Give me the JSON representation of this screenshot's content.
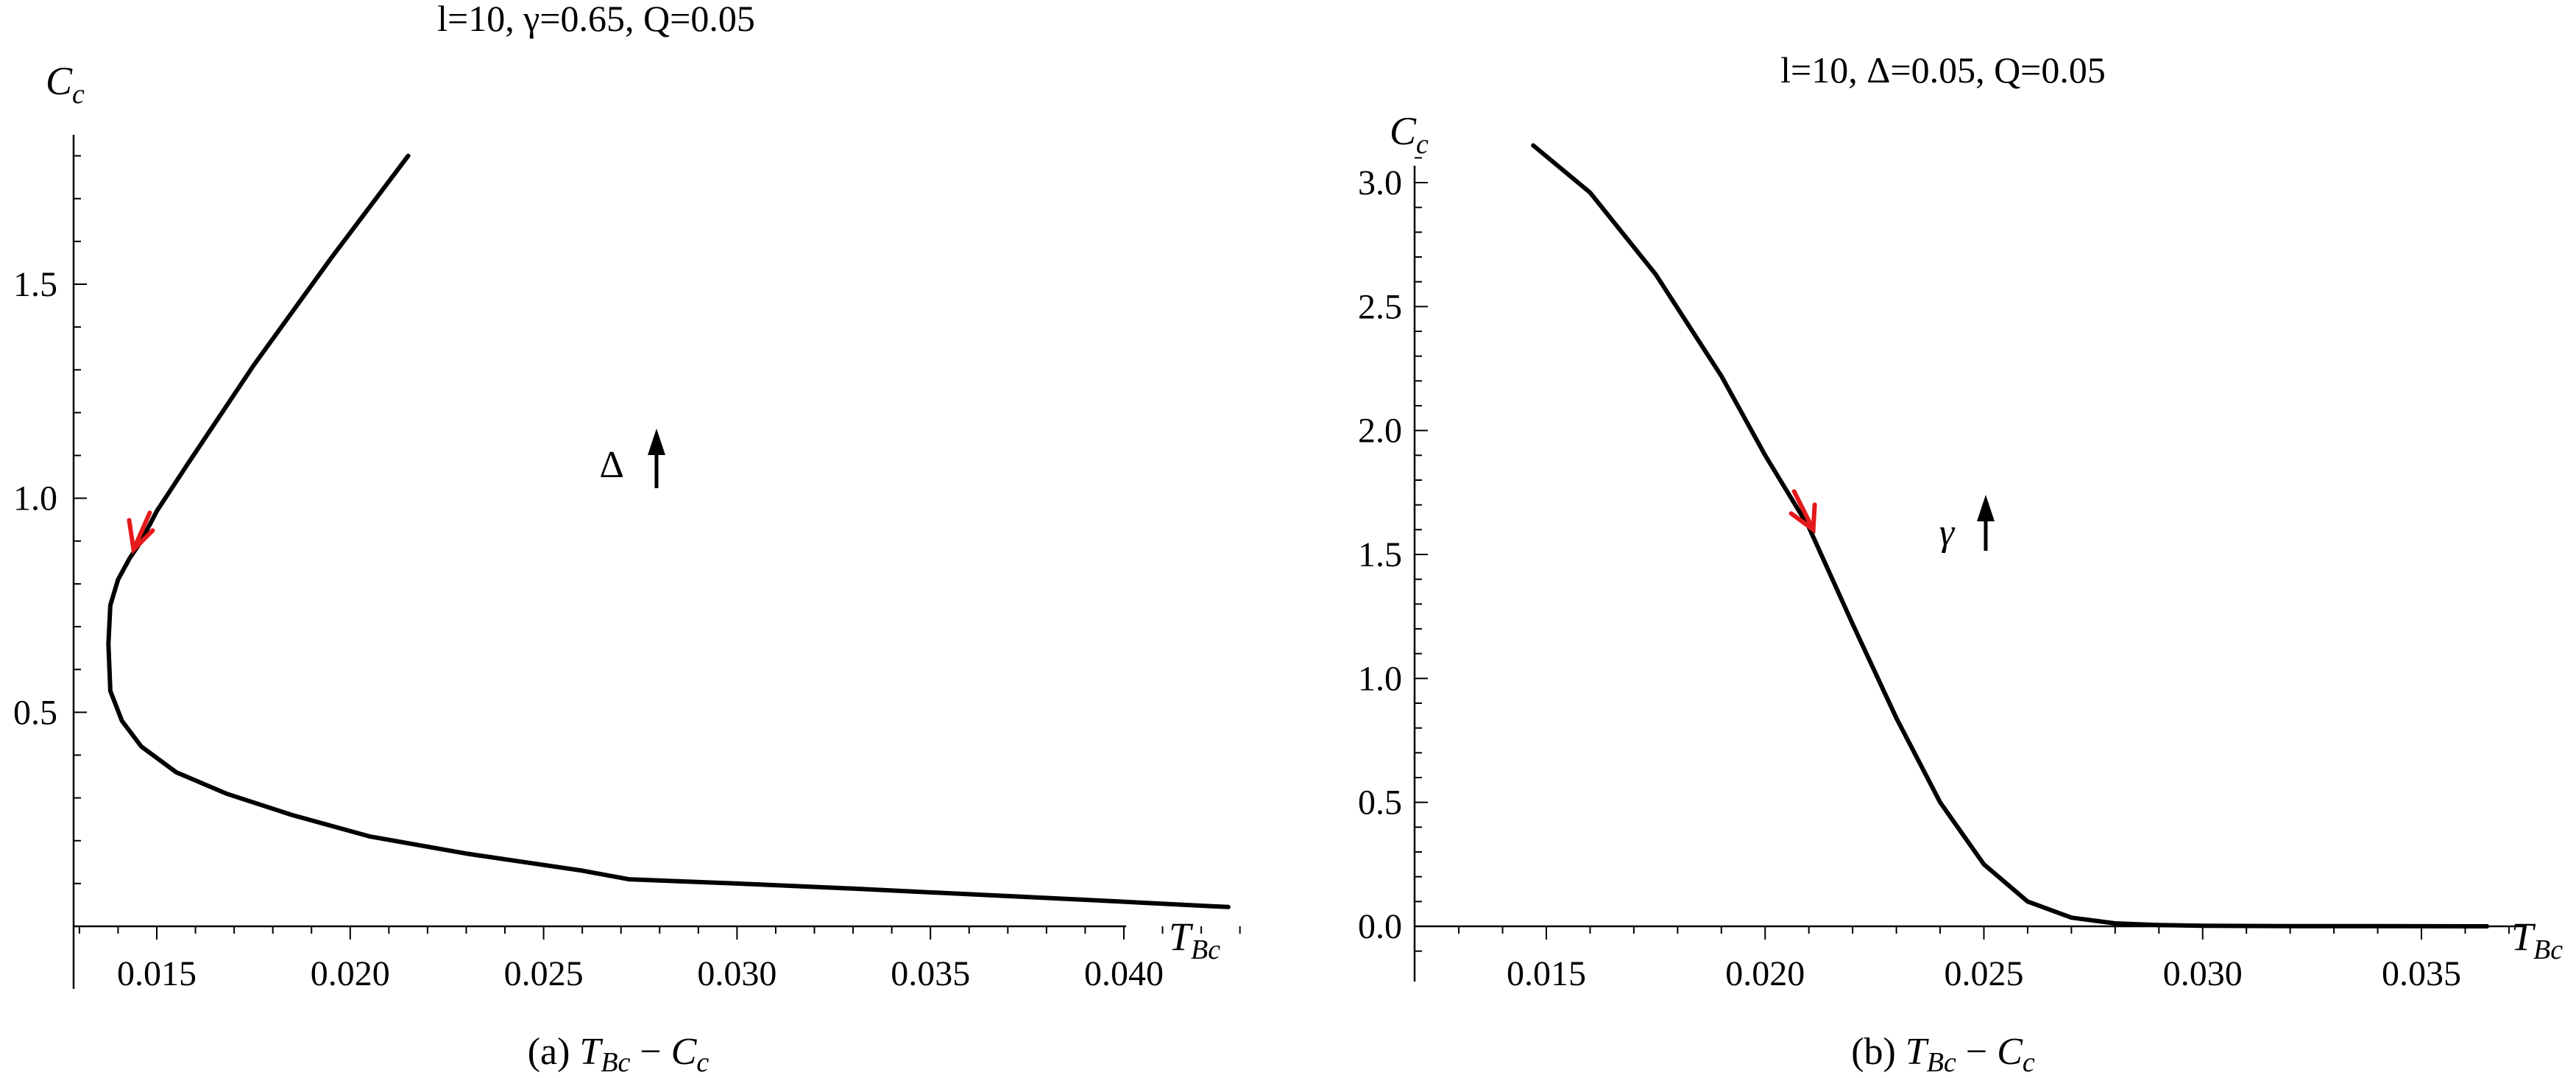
{
  "chart_data": [
    {
      "type": "line",
      "title": "l=10, γ=0.65, Q=0.05",
      "xlabel": "T_Bc",
      "ylabel": "C_c",
      "caption": "(a) T_Bc − C_c",
      "xlim": [
        0.012,
        0.0435
      ],
      "ylim": [
        0,
        1.85
      ],
      "xticks": [
        "0.015",
        "0.020",
        "0.025",
        "0.030",
        "0.035",
        "0.040"
      ],
      "yticks": [
        "0.5",
        "1.0",
        "1.5"
      ],
      "annotation": "Δ",
      "series": [
        {
          "x": [
            0.0215,
            0.0195,
            0.0175,
            0.0158,
            0.015,
            0.0146,
            0.0143,
            0.014,
            0.0138,
            0.01375,
            0.0138,
            0.0141,
            0.0146,
            0.0155,
            0.0168,
            0.0185,
            0.0205,
            0.023,
            0.026,
            0.0272,
            0.03,
            0.033,
            0.036,
            0.039,
            0.0427
          ],
          "y": [
            1.8,
            1.56,
            1.31,
            1.08,
            0.97,
            0.9,
            0.86,
            0.81,
            0.75,
            0.66,
            0.55,
            0.48,
            0.42,
            0.36,
            0.31,
            0.26,
            0.21,
            0.17,
            0.13,
            0.11,
            0.1,
            0.088,
            0.075,
            0.062,
            0.045
          ],
          "color": "#000000"
        }
      ],
      "arrow": {
        "x": 0.0144,
        "y": 0.88,
        "color": "#e41a1c"
      }
    },
    {
      "type": "line",
      "title": "l=10, Δ=0.05, Q=0.05",
      "xlabel": "T_Bc",
      "ylabel": "C_c",
      "caption": "(b) T_Bc − C_c",
      "xlim": [
        0.0125,
        0.0375
      ],
      "ylim": [
        -0.2,
        3.2
      ],
      "xticks": [
        "0.015",
        "0.020",
        "0.025",
        "0.030",
        "0.035"
      ],
      "yticks": [
        "0.0",
        "0.5",
        "1.0",
        "1.5",
        "2.0",
        "2.5",
        "3.0"
      ],
      "annotation": "γ",
      "series": [
        {
          "x": [
            0.0147,
            0.016,
            0.0175,
            0.019,
            0.02,
            0.021,
            0.022,
            0.023,
            0.024,
            0.025,
            0.026,
            0.027,
            0.028,
            0.029,
            0.03,
            0.032,
            0.034,
            0.0365
          ],
          "y": [
            3.15,
            2.96,
            2.63,
            2.22,
            1.9,
            1.61,
            1.22,
            0.84,
            0.5,
            0.25,
            0.1,
            0.035,
            0.012,
            0.005,
            0.002,
            0.001,
            0.0005,
            0.0
          ],
          "color": "#000000"
        }
      ],
      "arrow": {
        "x": 0.0211,
        "y": 1.6,
        "color": "#e41a1c"
      }
    }
  ]
}
